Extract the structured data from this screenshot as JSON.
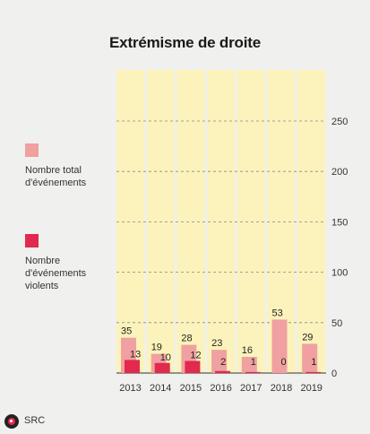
{
  "chart_data": {
    "type": "bar",
    "title": "Extrémisme de droite",
    "categories": [
      "2013",
      "2014",
      "2015",
      "2016",
      "2017",
      "2018",
      "2019"
    ],
    "series": [
      {
        "name": "Nombre total\nd'événements",
        "values": [
          35,
          19,
          28,
          23,
          16,
          53,
          29
        ],
        "color": "#f0a0a0"
      },
      {
        "name": "Nombre\nd'événements\nviolents",
        "values": [
          13,
          10,
          12,
          2,
          1,
          0,
          1
        ],
        "color": "#e2294f"
      }
    ],
    "ylim": [
      0,
      250
    ],
    "yticks": [
      0,
      50,
      100,
      150,
      200,
      250
    ],
    "grid": true,
    "legend_position": "left",
    "column_background": "#fbf3bb"
  },
  "footer": {
    "source": "SRC"
  }
}
